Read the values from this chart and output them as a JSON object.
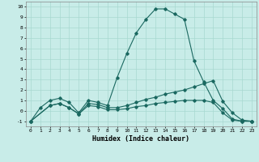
{
  "xlabel": "Humidex (Indice chaleur)",
  "xlim": [
    -0.5,
    23.5
  ],
  "ylim": [
    -1.5,
    10.5
  ],
  "xticks": [
    0,
    1,
    2,
    3,
    4,
    5,
    6,
    7,
    8,
    9,
    10,
    11,
    12,
    13,
    14,
    15,
    16,
    17,
    18,
    19,
    20,
    21,
    22,
    23
  ],
  "yticks": [
    -1,
    0,
    1,
    2,
    3,
    4,
    5,
    6,
    7,
    8,
    9,
    10
  ],
  "bg_color": "#c8ece8",
  "grid_color": "#a8d8d0",
  "line_color": "#1a6860",
  "line1_x": [
    0,
    1,
    2,
    3,
    4,
    5,
    6,
    7,
    8,
    9,
    10,
    11,
    12,
    13,
    14,
    15,
    16,
    17,
    18,
    19,
    20,
    21,
    22,
    23
  ],
  "line1_y": [
    -1,
    0.3,
    1.0,
    1.2,
    0.8,
    -0.2,
    1.0,
    0.8,
    0.5,
    3.2,
    5.5,
    7.5,
    8.8,
    9.8,
    9.8,
    9.3,
    8.8,
    4.8,
    2.8,
    1.0,
    0.2,
    -0.8,
    -1.0,
    -1.0
  ],
  "line2_x": [
    0,
    2,
    3,
    4,
    5,
    6,
    7,
    8,
    9,
    10,
    11,
    12,
    13,
    14,
    15,
    16,
    17,
    18,
    19,
    20,
    21,
    22,
    23
  ],
  "line2_y": [
    -1,
    0.5,
    0.7,
    0.3,
    -0.3,
    0.7,
    0.6,
    0.3,
    0.3,
    0.5,
    0.8,
    1.1,
    1.3,
    1.6,
    1.8,
    2.0,
    2.3,
    2.6,
    2.9,
    0.9,
    -0.2,
    -0.9,
    -1.0
  ],
  "line3_x": [
    0,
    2,
    3,
    4,
    5,
    6,
    7,
    8,
    9,
    10,
    11,
    12,
    13,
    14,
    15,
    16,
    17,
    18,
    19,
    20,
    21,
    22,
    23
  ],
  "line3_y": [
    -1,
    0.5,
    0.7,
    0.3,
    -0.3,
    0.5,
    0.4,
    0.1,
    0.1,
    0.2,
    0.4,
    0.5,
    0.7,
    0.8,
    0.9,
    1.0,
    1.0,
    1.0,
    0.8,
    -0.2,
    -0.9,
    -1.0,
    -1.0
  ]
}
